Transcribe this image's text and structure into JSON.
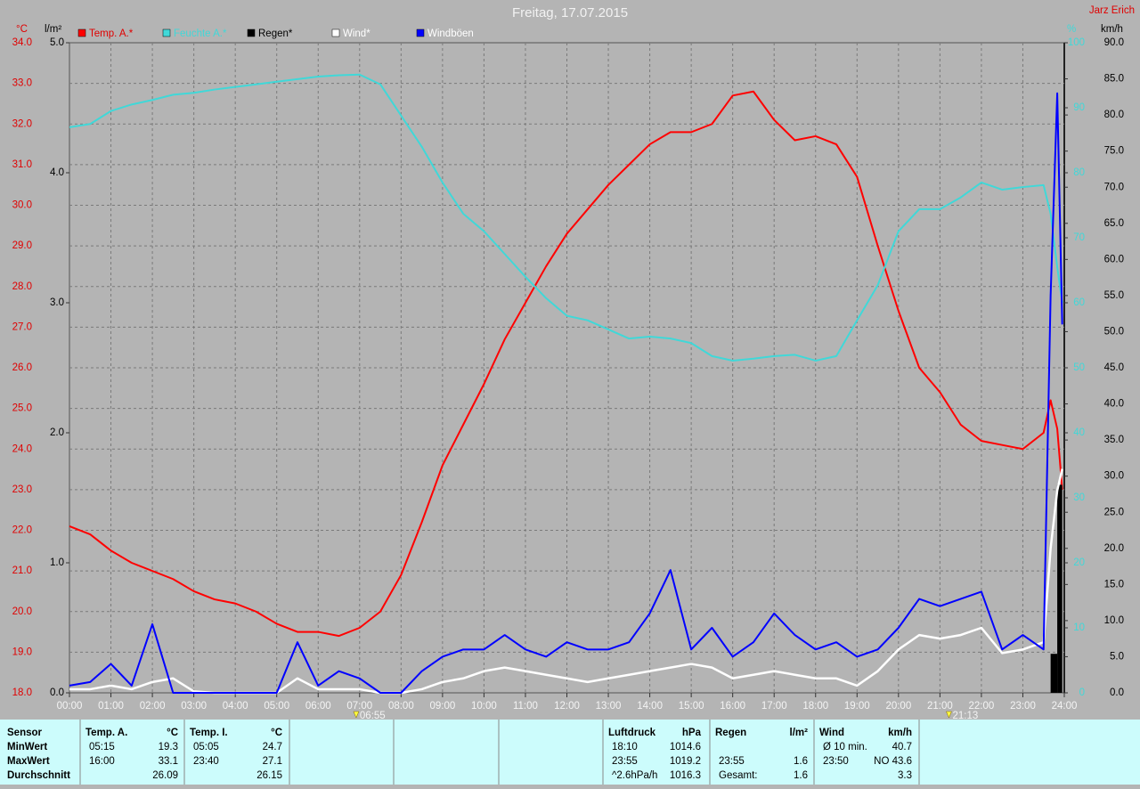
{
  "chart_data": {
    "type": "line",
    "title": "Freitag, 17.07.2015",
    "author": "Jarz Erich",
    "y_unit": "°C",
    "y2_unit": "l/m²",
    "y3_unit": "%",
    "y4_unit": "km/h",
    "grid": true,
    "x": [
      0,
      0.5,
      1,
      1.5,
      2,
      2.5,
      3,
      3.5,
      4,
      4.5,
      5,
      5.5,
      6,
      6.5,
      7,
      7.5,
      8,
      8.5,
      9,
      9.5,
      10,
      10.5,
      11,
      11.5,
      12,
      12.5,
      13,
      13.5,
      14,
      14.5,
      15,
      15.5,
      16,
      16.5,
      17,
      17.5,
      18,
      18.5,
      19,
      19.5,
      20,
      20.5,
      21,
      21.5,
      22,
      22.5,
      23,
      23.5,
      23.67,
      23.83,
      23.95
    ],
    "xlim": [
      0,
      24
    ],
    "xticks": [
      {
        "value": 0,
        "label": "00:00"
      },
      {
        "value": 1,
        "label": "01:00"
      },
      {
        "value": 2,
        "label": "02:00"
      },
      {
        "value": 3,
        "label": "03:00"
      },
      {
        "value": 4,
        "label": "04:00"
      },
      {
        "value": 5,
        "label": "05:00"
      },
      {
        "value": 6,
        "label": "06:00"
      },
      {
        "value": 7,
        "label": "07:00"
      },
      {
        "value": 8,
        "label": "08:00"
      },
      {
        "value": 9,
        "label": "09:00"
      },
      {
        "value": 10,
        "label": "10:00"
      },
      {
        "value": 11,
        "label": "11:00"
      },
      {
        "value": 12,
        "label": "12:00"
      },
      {
        "value": 13,
        "label": "13:00"
      },
      {
        "value": 14,
        "label": "14:00"
      },
      {
        "value": 15,
        "label": "15:00"
      },
      {
        "value": 16,
        "label": "16:00"
      },
      {
        "value": 17,
        "label": "17:00"
      },
      {
        "value": 18,
        "label": "18:00"
      },
      {
        "value": 19,
        "label": "19:00"
      },
      {
        "value": 20,
        "label": "20:00"
      },
      {
        "value": 21,
        "label": "21:00"
      },
      {
        "value": 22,
        "label": "22:00"
      },
      {
        "value": 23,
        "label": "23:00"
      },
      {
        "value": 24,
        "label": "24:00"
      }
    ],
    "ylim": [
      18,
      34
    ],
    "yticks": [
      {
        "value": 18,
        "label": "18.0"
      },
      {
        "value": 19,
        "label": "19.0"
      },
      {
        "value": 20,
        "label": "20.0"
      },
      {
        "value": 21,
        "label": "21.0"
      },
      {
        "value": 22,
        "label": "22.0"
      },
      {
        "value": 23,
        "label": "23.0"
      },
      {
        "value": 24,
        "label": "24.0"
      },
      {
        "value": 25,
        "label": "25.0"
      },
      {
        "value": 26,
        "label": "26.0"
      },
      {
        "value": 27,
        "label": "27.0"
      },
      {
        "value": 28,
        "label": "28.0"
      },
      {
        "value": 29,
        "label": "29.0"
      },
      {
        "value": 30,
        "label": "30.0"
      },
      {
        "value": 31,
        "label": "31.0"
      },
      {
        "value": 32,
        "label": "32.0"
      },
      {
        "value": 33,
        "label": "33.0"
      },
      {
        "value": 34,
        "label": "34.0"
      }
    ],
    "y2lim": [
      0,
      5
    ],
    "y2ticks": [
      {
        "value": 0,
        "label": "0.0"
      },
      {
        "value": 1,
        "label": "1.0"
      },
      {
        "value": 2,
        "label": "2.0"
      },
      {
        "value": 3,
        "label": "3.0"
      },
      {
        "value": 4,
        "label": "4.0"
      },
      {
        "value": 5,
        "label": "5.0"
      }
    ],
    "y3lim": [
      0,
      100
    ],
    "y3ticks": [
      0,
      10,
      20,
      30,
      40,
      50,
      60,
      70,
      80,
      90,
      100
    ],
    "y4lim": [
      0,
      90
    ],
    "y4ticks": [
      {
        "value": 0,
        "label": "0.0"
      },
      {
        "value": 5,
        "label": "5.0"
      },
      {
        "value": 10,
        "label": "10.0"
      },
      {
        "value": 15,
        "label": "15.0"
      },
      {
        "value": 20,
        "label": "20.0"
      },
      {
        "value": 25,
        "label": "25.0"
      },
      {
        "value": 30,
        "label": "30.0"
      },
      {
        "value": 35,
        "label": "35.0"
      },
      {
        "value": 40,
        "label": "40.0"
      },
      {
        "value": 45,
        "label": "45.0"
      },
      {
        "value": 50,
        "label": "50.0"
      },
      {
        "value": 55,
        "label": "55.0"
      },
      {
        "value": 60,
        "label": "60.0"
      },
      {
        "value": 65,
        "label": "65.0"
      },
      {
        "value": 70,
        "label": "70.0"
      },
      {
        "value": 75,
        "label": "75.0"
      },
      {
        "value": 80,
        "label": "80.0"
      },
      {
        "value": 85,
        "label": "85.0"
      },
      {
        "value": 90,
        "label": "90.0"
      }
    ],
    "series": [
      {
        "name": "Temp. A.*",
        "color": "#ff0000",
        "axis": "y",
        "values": [
          22.1,
          21.9,
          21.5,
          21.2,
          21.0,
          20.8,
          20.5,
          20.3,
          20.2,
          20.0,
          19.7,
          19.5,
          19.5,
          19.4,
          19.6,
          20.0,
          20.9,
          22.2,
          23.6,
          24.6,
          25.6,
          26.7,
          27.6,
          28.5,
          29.3,
          29.9,
          30.5,
          31.0,
          31.5,
          31.8,
          31.8,
          32.0,
          32.7,
          32.8,
          32.1,
          31.6,
          31.7,
          31.5,
          30.7,
          29.0,
          27.4,
          26.0,
          25.4,
          24.6,
          24.2,
          24.1,
          24.0,
          24.4,
          25.2,
          24.5,
          23.0
        ]
      },
      {
        "name": "Feuchte A.*",
        "color": "#40d8d8",
        "axis": "y3",
        "values": [
          87.0,
          87.5,
          89.5,
          90.5,
          91.2,
          92.0,
          92.3,
          92.8,
          93.2,
          93.6,
          94.0,
          94.4,
          94.8,
          95.0,
          95.1,
          93.6,
          88.8,
          84.0,
          78.5,
          73.7,
          71.0,
          67.5,
          64.0,
          60.7,
          58.0,
          57.3,
          55.9,
          54.5,
          54.8,
          54.5,
          53.8,
          51.8,
          51.1,
          51.4,
          51.8,
          52.0,
          51.1,
          51.8,
          57.3,
          62.7,
          71.0,
          74.4,
          74.4,
          76.2,
          78.5,
          77.4,
          77.8,
          78.1,
          73.7,
          65.5,
          60.0
        ]
      },
      {
        "name": "Regen*",
        "color": "#000000",
        "axis": "y2",
        "values": [
          0,
          0,
          0,
          0,
          0,
          0,
          0,
          0,
          0,
          0,
          0,
          0,
          0,
          0,
          0,
          0,
          0,
          0,
          0,
          0,
          0,
          0,
          0,
          0,
          0,
          0,
          0,
          0,
          0,
          0,
          0,
          0,
          0,
          0,
          0,
          0,
          0,
          0,
          0,
          0,
          0,
          0,
          0,
          0,
          0,
          0,
          0,
          0,
          0,
          0.3,
          1.6
        ]
      },
      {
        "name": "Wind*",
        "color": "#ffffff",
        "axis": "y4",
        "values": [
          0.5,
          0.5,
          1,
          0.5,
          1.5,
          2,
          0.2,
          0,
          0,
          0,
          0,
          2,
          0.5,
          0.5,
          0.5,
          0,
          0,
          0.5,
          1.5,
          2,
          3,
          3.5,
          3,
          2.5,
          2,
          1.5,
          2,
          2.5,
          3,
          3.5,
          4,
          3.5,
          2,
          2.5,
          3,
          2.5,
          2,
          2,
          1,
          3,
          6,
          8,
          7.5,
          8,
          9,
          5.5,
          6,
          7,
          20,
          28,
          31
        ]
      },
      {
        "name": "Windböen",
        "color": "#0000ff",
        "axis": "y4",
        "values": [
          1,
          1.5,
          4,
          1,
          9.5,
          0,
          0,
          0,
          0,
          0,
          0,
          7,
          1,
          3,
          2,
          0,
          0,
          3,
          5,
          6,
          6,
          8,
          6,
          5,
          7,
          6,
          6,
          7,
          11,
          17,
          6,
          9,
          5,
          7,
          11,
          8,
          6,
          7,
          5,
          6,
          9,
          13,
          12,
          13,
          14,
          6,
          8,
          6,
          55,
          83,
          51
        ]
      }
    ],
    "annotations": [
      {
        "x": 6.9167,
        "label": "06:55"
      },
      {
        "x": 21.2167,
        "label": "21:13"
      }
    ]
  },
  "summary": {
    "labels": [
      "Sensor",
      "MinWert",
      "MaxWert",
      "Durchschnitt"
    ],
    "groups": [
      {
        "header": [
          "Temp. A.",
          "°C"
        ],
        "rows": [
          [
            "05:15",
            "19.3"
          ],
          [
            "16:00",
            "33.1"
          ],
          [
            null,
            "26.09"
          ]
        ]
      },
      {
        "header": [
          "Temp. I.",
          "°C"
        ],
        "rows": [
          [
            "05:05",
            "24.7"
          ],
          [
            "23:40",
            "27.1"
          ],
          [
            null,
            "26.15"
          ]
        ]
      },
      {
        "header": [
          "Luftdruck",
          "hPa"
        ],
        "rows": [
          [
            "18:10",
            "1014.6"
          ],
          [
            "23:55",
            "1019.2"
          ],
          [
            "^2.6hPa/h",
            "1016.3"
          ]
        ]
      },
      {
        "header": [
          "Regen",
          "l/m²"
        ],
        "rows": [
          [
            null,
            null
          ],
          [
            "23:55",
            "1.6"
          ],
          [
            "Gesamt:",
            "1.6"
          ]
        ]
      },
      {
        "header": [
          "Wind",
          "km/h"
        ],
        "rows": [
          [
            "Ø 10 min.",
            "40.7"
          ],
          [
            "23:50",
            "NO 43.6"
          ],
          [
            null,
            "3.3"
          ]
        ]
      }
    ]
  }
}
